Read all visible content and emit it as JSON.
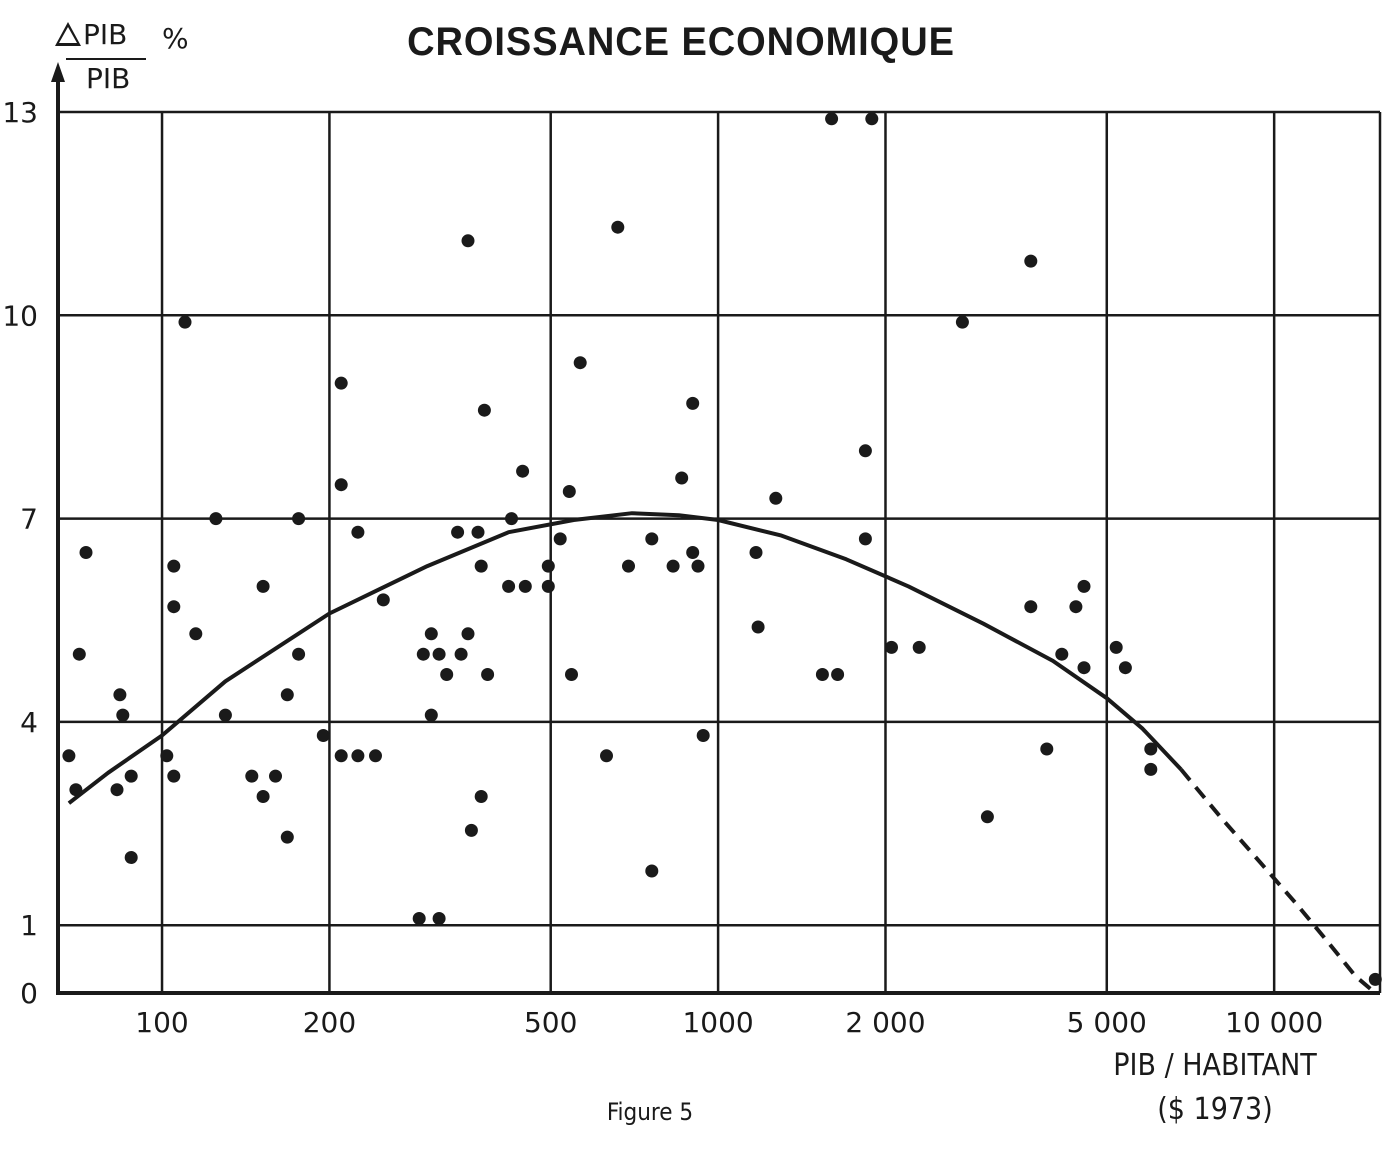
{
  "title": "CROISSANCE ECONOMIQUE",
  "y_label": {
    "numerator": "PIB",
    "denominator": "PIB",
    "unit": "%"
  },
  "x_label": {
    "line1": "PIB / HABITANT",
    "line2": "($ 1973)"
  },
  "caption": "Figure 5",
  "chart_data": {
    "type": "scatter",
    "title": "CROISSANCE ECONOMIQUE",
    "xlabel": "PIB / HABITANT ($ 1973)",
    "ylabel": "ΔPIB/PIB %",
    "x_scale": "log",
    "grid": true,
    "xlim": [
      65,
      15500
    ],
    "ylim": [
      0,
      13
    ],
    "x_ticks": [
      100,
      200,
      500,
      1000,
      2000,
      5000,
      10000
    ],
    "x_tick_labels": [
      "100",
      "200",
      "500",
      "1000",
      "2 000",
      "5 000",
      "10 000"
    ],
    "y_ticks": [
      0,
      1,
      4,
      7,
      10,
      13
    ],
    "y_tick_labels": [
      "0",
      "1",
      "4",
      "7",
      "10",
      "13"
    ],
    "points": [
      [
        68,
        3.5
      ],
      [
        71,
        5.0
      ],
      [
        70,
        3.0
      ],
      [
        73,
        6.5
      ],
      [
        84,
        4.4
      ],
      [
        85,
        4.1
      ],
      [
        83,
        3.0
      ],
      [
        88,
        3.2
      ],
      [
        88,
        2.0
      ],
      [
        102,
        3.5
      ],
      [
        105,
        6.3
      ],
      [
        105,
        5.7
      ],
      [
        105,
        3.2
      ],
      [
        110,
        9.9
      ],
      [
        115,
        5.3
      ],
      [
        125,
        7.0
      ],
      [
        130,
        4.1
      ],
      [
        145,
        3.2
      ],
      [
        152,
        6.0
      ],
      [
        152,
        2.9
      ],
      [
        160,
        3.2
      ],
      [
        168,
        4.4
      ],
      [
        168,
        2.3
      ],
      [
        176,
        7.0
      ],
      [
        176,
        5.0
      ],
      [
        195,
        3.8
      ],
      [
        210,
        9.0
      ],
      [
        210,
        7.5
      ],
      [
        210,
        3.5
      ],
      [
        225,
        6.8
      ],
      [
        225,
        3.5
      ],
      [
        242,
        3.5
      ],
      [
        250,
        5.8
      ],
      [
        290,
        1.1
      ],
      [
        295,
        5.0
      ],
      [
        305,
        5.3
      ],
      [
        305,
        4.1
      ],
      [
        315,
        1.1
      ],
      [
        315,
        5.0
      ],
      [
        325,
        4.7
      ],
      [
        340,
        6.8
      ],
      [
        345,
        5.0
      ],
      [
        355,
        11.1
      ],
      [
        355,
        5.3
      ],
      [
        360,
        2.4
      ],
      [
        370,
        6.8
      ],
      [
        375,
        6.3
      ],
      [
        375,
        2.9
      ],
      [
        380,
        8.6
      ],
      [
        385,
        4.7
      ],
      [
        420,
        6.0
      ],
      [
        425,
        7.0
      ],
      [
        445,
        7.7
      ],
      [
        450,
        6.0
      ],
      [
        495,
        6.3
      ],
      [
        495,
        6.0
      ],
      [
        520,
        6.7
      ],
      [
        540,
        7.4
      ],
      [
        545,
        4.7
      ],
      [
        565,
        9.3
      ],
      [
        630,
        3.5
      ],
      [
        660,
        11.3
      ],
      [
        690,
        6.3
      ],
      [
        760,
        6.7
      ],
      [
        760,
        1.8
      ],
      [
        830,
        6.3
      ],
      [
        860,
        7.6
      ],
      [
        900,
        8.7
      ],
      [
        900,
        6.5
      ],
      [
        920,
        6.3
      ],
      [
        940,
        3.8
      ],
      [
        1170,
        6.5
      ],
      [
        1180,
        5.4
      ],
      [
        1270,
        7.3
      ],
      [
        1540,
        4.7
      ],
      [
        1600,
        12.9
      ],
      [
        1640,
        4.7
      ],
      [
        1840,
        8.0
      ],
      [
        1840,
        6.7
      ],
      [
        1890,
        12.9
      ],
      [
        2050,
        5.1
      ],
      [
        2300,
        5.1
      ],
      [
        2750,
        9.9
      ],
      [
        3050,
        2.6
      ],
      [
        3650,
        10.8
      ],
      [
        3650,
        5.7
      ],
      [
        3900,
        3.6
      ],
      [
        4150,
        5.0
      ],
      [
        4400,
        5.7
      ],
      [
        4550,
        6.0
      ],
      [
        4550,
        4.8
      ],
      [
        5200,
        5.1
      ],
      [
        5400,
        4.8
      ],
      [
        6000,
        3.6
      ],
      [
        6000,
        3.3
      ],
      [
        15200,
        0.2
      ]
    ],
    "trend_solid": [
      [
        68,
        2.8
      ],
      [
        80,
        3.25
      ],
      [
        100,
        3.8
      ],
      [
        130,
        4.6
      ],
      [
        200,
        5.6
      ],
      [
        300,
        6.3
      ],
      [
        420,
        6.8
      ],
      [
        550,
        6.98
      ],
      [
        700,
        7.08
      ],
      [
        850,
        7.05
      ],
      [
        1000,
        6.98
      ],
      [
        1300,
        6.75
      ],
      [
        1700,
        6.4
      ],
      [
        2200,
        6.0
      ],
      [
        3000,
        5.45
      ],
      [
        4000,
        4.9
      ],
      [
        5000,
        4.35
      ],
      [
        5800,
        3.9
      ],
      [
        6800,
        3.3
      ]
    ],
    "trend_dashed": [
      [
        6800,
        3.3
      ],
      [
        8000,
        2.6
      ],
      [
        9500,
        1.9
      ],
      [
        11000,
        1.3
      ],
      [
        12500,
        0.75
      ],
      [
        14000,
        0.25
      ],
      [
        15200,
        0.0
      ]
    ]
  }
}
